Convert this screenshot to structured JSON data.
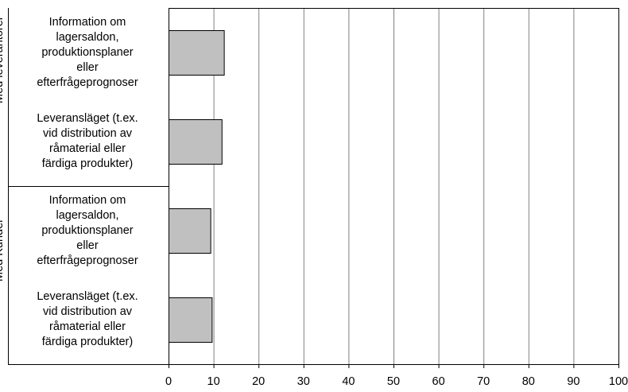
{
  "chart_data": {
    "type": "bar",
    "orientation": "horizontal",
    "groups": [
      {
        "label": "Med leverantörer",
        "categories": [
          [
            "Information om",
            "lagersaldon,",
            "produktionsplaner",
            "eller",
            "efterfrågeprognoser"
          ],
          [
            "Leveransläget (t.ex.",
            "vid distribution av",
            "råmaterial eller",
            "färdiga produkter)"
          ]
        ],
        "values": [
          12.3,
          11.8
        ]
      },
      {
        "label": "Med Kunder",
        "categories": [
          [
            "Information om",
            "lagersaldon,",
            "produktionsplaner",
            "eller",
            "efterfrågeprognoser"
          ],
          [
            "Leveransläget (t.ex.",
            "vid distribution av",
            "råmaterial eller",
            "färdiga produkter)"
          ]
        ],
        "values": [
          9.3,
          9.6
        ]
      }
    ],
    "xlim": [
      0,
      100
    ],
    "xticks": [
      "0",
      "10",
      "20",
      "30",
      "40",
      "50",
      "60",
      "70",
      "80",
      "90",
      "100"
    ],
    "grid": true,
    "bar_color": "#c0c0c0",
    "title": "",
    "xlabel": "",
    "ylabel": ""
  }
}
